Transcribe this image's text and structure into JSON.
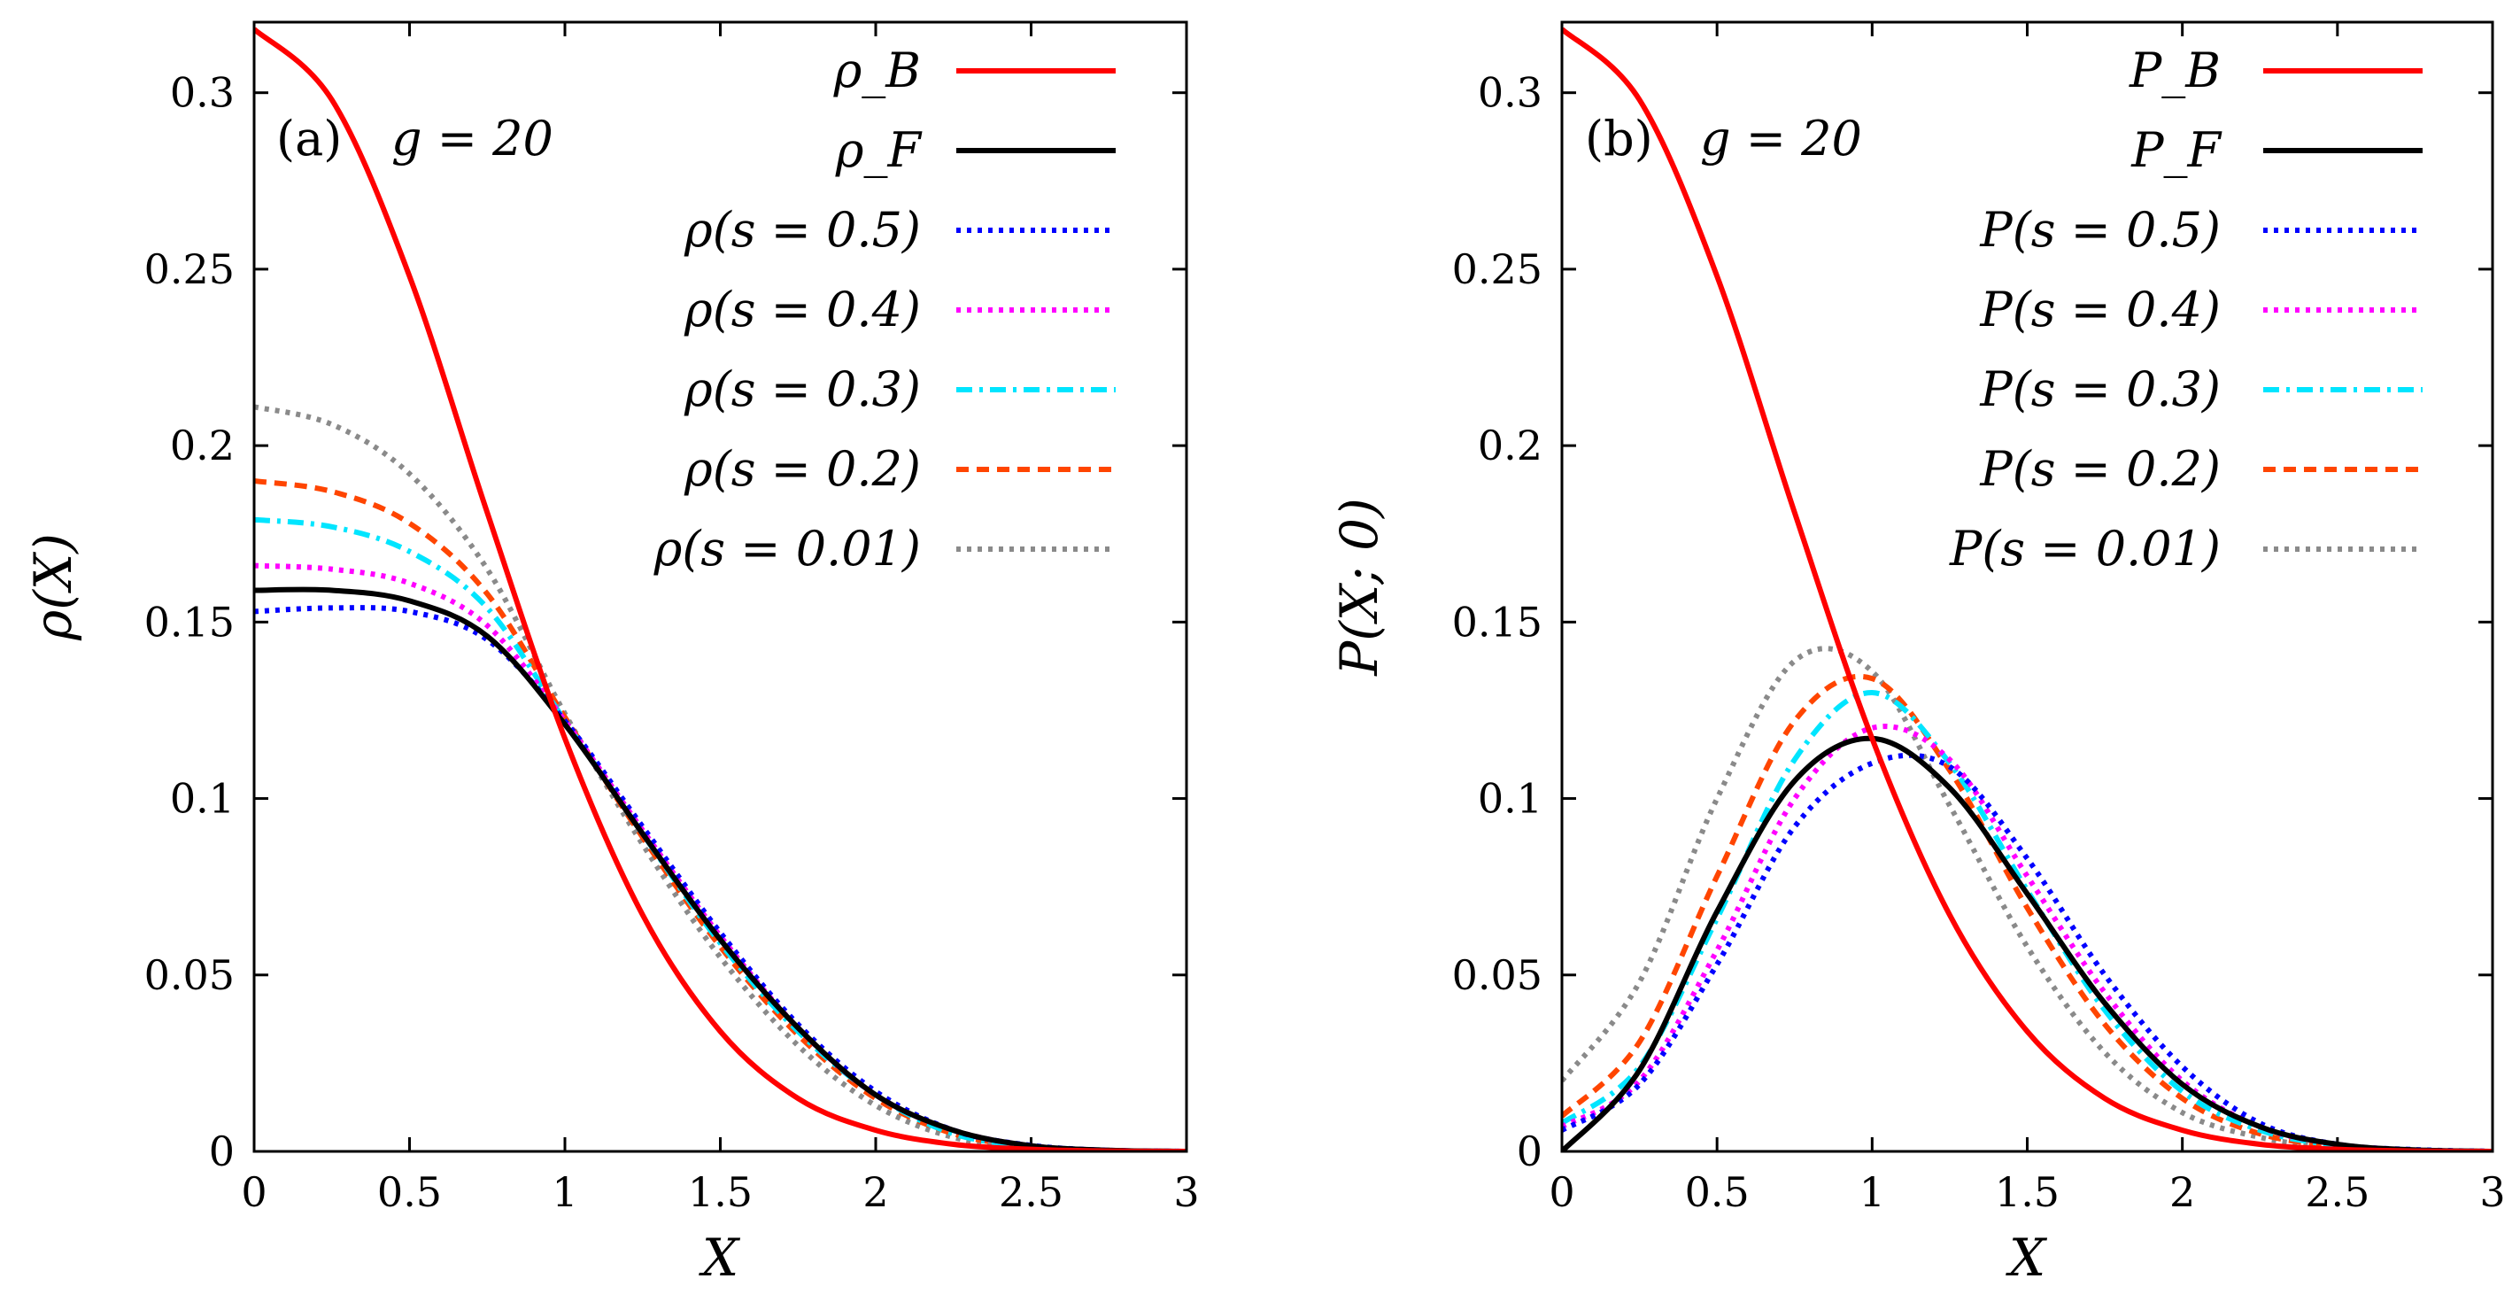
{
  "colors": {
    "boson": "#ff0000",
    "fermion": "#000000",
    "s05": "#0000ff",
    "s04": "#ff00ff",
    "s03": "#00e5ff",
    "s02": "#ff4500",
    "s001": "#8a8a8a"
  },
  "chart_data": [
    {
      "type": "line",
      "panel_label": "(a)",
      "annotation": "g = 20",
      "xlabel": "X",
      "ylabel": "ρ(X)",
      "xlim": [
        0,
        3
      ],
      "ylim": [
        0,
        0.32
      ],
      "x_ticks": [
        "0",
        "0.5",
        "1",
        "1.5",
        "2",
        "2.5",
        "3"
      ],
      "y_ticks": [
        "0",
        "0.05",
        "0.1",
        "0.15",
        "0.2",
        "0.25",
        "0.3"
      ],
      "legend_position": "top-right",
      "x": [
        0,
        0.25,
        0.5,
        0.75,
        1.0,
        1.25,
        1.5,
        1.75,
        2.0,
        2.25,
        2.5,
        2.75,
        3.0
      ],
      "series": [
        {
          "key": "rhoB",
          "name": "ρ_B",
          "color_key": "boson",
          "style": "solid",
          "values": [
            0.318,
            0.298,
            0.248,
            0.181,
            0.117,
            0.067,
            0.034,
            0.015,
            0.006,
            0.002,
            0.0006,
            0.0001,
            0.0
          ]
        },
        {
          "key": "rhoF",
          "name": "ρ_F",
          "color_key": "fermion",
          "style": "solid",
          "values": [
            0.159,
            0.159,
            0.156,
            0.146,
            0.121,
            0.09,
            0.06,
            0.035,
            0.016,
            0.006,
            0.0016,
            0.0003,
            0.0
          ]
        },
        {
          "key": "s05",
          "name": "ρ(s = 0.5)",
          "color_key": "s05",
          "style": "dotted",
          "values": [
            0.153,
            0.154,
            0.153,
            0.145,
            0.122,
            0.092,
            0.062,
            0.036,
            0.017,
            0.006,
            0.0017,
            0.0003,
            0.0
          ]
        },
        {
          "key": "s04",
          "name": "ρ(s = 0.4)",
          "color_key": "s04",
          "style": "dotted",
          "values": [
            0.166,
            0.165,
            0.161,
            0.149,
            0.122,
            0.091,
            0.061,
            0.035,
            0.016,
            0.006,
            0.0016,
            0.0003,
            0.0
          ]
        },
        {
          "key": "s03",
          "name": "ρ(s = 0.3)",
          "color_key": "s03",
          "style": "dashdot",
          "values": [
            0.179,
            0.177,
            0.17,
            0.154,
            0.122,
            0.09,
            0.059,
            0.034,
            0.016,
            0.005,
            0.0015,
            0.0003,
            0.0
          ]
        },
        {
          "key": "s02",
          "name": "ρ(s = 0.2)",
          "color_key": "s02",
          "style": "dashed",
          "values": [
            0.19,
            0.187,
            0.178,
            0.158,
            0.123,
            0.089,
            0.058,
            0.033,
            0.015,
            0.005,
            0.0014,
            0.0003,
            0.0
          ]
        },
        {
          "key": "s001",
          "name": "ρ(s = 0.01)",
          "color_key": "s001",
          "style": "dotted",
          "values": [
            0.211,
            0.206,
            0.192,
            0.165,
            0.124,
            0.087,
            0.055,
            0.03,
            0.013,
            0.004,
            0.0012,
            0.0002,
            0.0
          ]
        }
      ]
    },
    {
      "type": "line",
      "panel_label": "(b)",
      "annotation": "g = 20",
      "xlabel": "X",
      "ylabel": "P(X; 0)",
      "xlim": [
        0,
        3
      ],
      "ylim": [
        0,
        0.32
      ],
      "x_ticks": [
        "0",
        "0.5",
        "1",
        "1.5",
        "2",
        "2.5",
        "3"
      ],
      "y_ticks": [
        "0",
        "0.05",
        "0.1",
        "0.15",
        "0.2",
        "0.25",
        "0.3"
      ],
      "legend_position": "top-right",
      "x": [
        0,
        0.25,
        0.5,
        0.75,
        1.0,
        1.25,
        1.5,
        1.75,
        2.0,
        2.25,
        2.5,
        2.75,
        3.0
      ],
      "series": [
        {
          "key": "PB",
          "name": "P_B",
          "color_key": "boson",
          "style": "solid",
          "values": [
            0.318,
            0.298,
            0.248,
            0.181,
            0.117,
            0.067,
            0.034,
            0.015,
            0.006,
            0.002,
            0.0006,
            0.0001,
            0.0
          ]
        },
        {
          "key": "PF",
          "name": "P_F",
          "color_key": "fermion",
          "style": "solid",
          "values": [
            0.0,
            0.023,
            0.068,
            0.105,
            0.117,
            0.103,
            0.073,
            0.042,
            0.019,
            0.007,
            0.002,
            0.0004,
            0.0
          ]
        },
        {
          "key": "s05",
          "name": "P(s = 0.5)",
          "color_key": "s05",
          "style": "dotted",
          "values": [
            0.006,
            0.019,
            0.053,
            0.092,
            0.11,
            0.109,
            0.083,
            0.05,
            0.024,
            0.008,
            0.002,
            0.0005,
            0.0
          ]
        },
        {
          "key": "s04",
          "name": "P(s = 0.4)",
          "color_key": "s04",
          "style": "dotted",
          "values": [
            0.007,
            0.02,
            0.057,
            0.1,
            0.12,
            0.111,
            0.078,
            0.045,
            0.02,
            0.007,
            0.002,
            0.0004,
            0.0
          ]
        },
        {
          "key": "s03",
          "name": "P(s = 0.3)",
          "color_key": "s03",
          "style": "dashdot",
          "values": [
            0.008,
            0.024,
            0.066,
            0.111,
            0.13,
            0.11,
            0.074,
            0.04,
            0.017,
            0.006,
            0.0017,
            0.0004,
            0.0
          ]
        },
        {
          "key": "s02",
          "name": "P(s = 0.2)",
          "color_key": "s02",
          "style": "dashed",
          "values": [
            0.01,
            0.031,
            0.078,
            0.122,
            0.134,
            0.108,
            0.069,
            0.036,
            0.015,
            0.005,
            0.0015,
            0.0003,
            0.0
          ]
        },
        {
          "key": "s001",
          "name": "P(s = 0.01)",
          "color_key": "s001",
          "style": "dotted",
          "values": [
            0.02,
            0.048,
            0.1,
            0.139,
            0.136,
            0.098,
            0.058,
            0.028,
            0.011,
            0.004,
            0.001,
            0.0002,
            0.0
          ]
        }
      ]
    }
  ]
}
